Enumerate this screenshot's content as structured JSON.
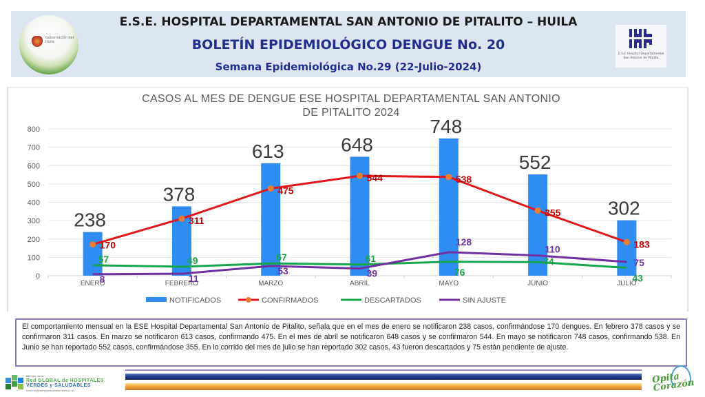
{
  "header": {
    "title": "E.S.E. HOSPITAL DEPARTAMENTAL SAN ANTONIO DE PITALITO  –  HUILA",
    "subtitle": "BOLETÍN EPIDEMIOLÓGICO DENGUE No. 20",
    "week": "Semana Epidemiológica No.29 (22-Julio-2024)",
    "left_logo_text": "Gobernación del Huila",
    "right_logo_mark": "IHL IHP",
    "right_logo_caption": "E.S.E Hospital Departamental San Antonio de Pitalito"
  },
  "colors": {
    "notificados": "#2f8cf0",
    "confirmados": "#e0161b",
    "confirmados_marker": "#ed7d31",
    "descartados": "#13a64a",
    "sin_ajuste": "#7030a0",
    "confirmados_label": "#c00000",
    "descartados_label": "#1aa34a",
    "sin_ajuste_label": "#7030a0"
  },
  "chart_data": {
    "type": "bar",
    "title": "CASOS AL MES DE DENGUE ESE HOSPITAL DEPARTAMENTAL SAN ANTONIO DE PITALITO 2024",
    "title_lines": [
      "CASOS AL MES DE DENGUE ESE HOSPITAL DEPARTAMENTAL SAN ANTONIO",
      "DE PITALITO 2024"
    ],
    "categories": [
      "ENERO",
      "FEBRERO",
      "MARZO",
      "ABRIL",
      "MAYO",
      "JUNIO",
      "JULIO"
    ],
    "series": [
      {
        "name": "NOTIFICADOS",
        "kind": "bar",
        "values": [
          238,
          378,
          613,
          648,
          748,
          552,
          302
        ]
      },
      {
        "name": "CONFIRMADOS",
        "kind": "line",
        "marker": true,
        "values": [
          170,
          311,
          475,
          544,
          538,
          355,
          183
        ]
      },
      {
        "name": "DESCARTADOS",
        "kind": "line",
        "values": [
          57,
          49,
          67,
          61,
          76,
          74,
          43
        ]
      },
      {
        "name": "SIN AJUSTE",
        "kind": "line",
        "values": [
          8,
          11,
          53,
          39,
          128,
          110,
          75
        ]
      }
    ],
    "xlabel": "",
    "ylabel": "",
    "ylim": [
      0,
      800
    ],
    "yticks": [
      0,
      100,
      200,
      300,
      400,
      500,
      600,
      700,
      800
    ],
    "grid": true,
    "legend_position": "bottom"
  },
  "description": "El comportamiento mensual en la ESE Hospital Departamental San Antonio de Pitalito, señala que en el mes de enero se notificaron 238 casos, confirmándose 170 dengues. En febrero 378 casos y se confirmaron 311 casos. En marzo se notificaron 613 casos, confirmando 475. En el mes de abril se notificaron 648 casos y se confirmaron 544. En mayo se notificaron 748 casos, confirmando  538. En Junio se han reportado 552 casos, confirmándose 355. En  lo corrido del mes de julio se han reportado 302 casos, 43 fueron descartados y 75 están pendiente de ajuste.",
  "footer": {
    "left_logo_small": "Miembro de la",
    "left_logo_line1": "Red GLOBAL de HOSPITALES",
    "left_logo_line2": "VERDES y SALUDABLES",
    "left_logo_url": "www.hospitalesporlasaludambiental.net",
    "right_logo_line1": "Opita",
    "right_logo_line2": "Corazón"
  }
}
